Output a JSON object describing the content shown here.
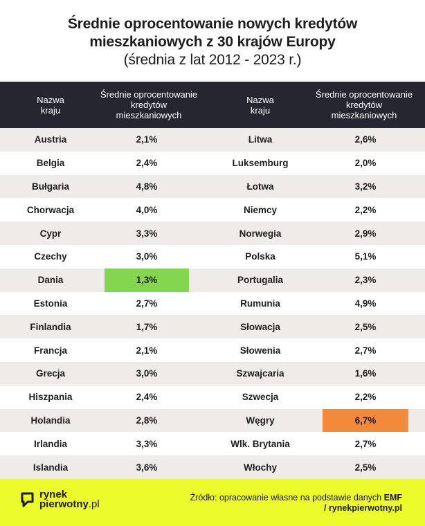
{
  "title": {
    "line1": "Średnie oprocentowanie nowych kredytów",
    "line2": "mieszkaniowych z 30 krajów Europy",
    "line3": "(średnia z lat 2012 - 2023 r.)"
  },
  "headers": {
    "country": "Nazwa\nkraju",
    "rate": "Średnie oprocentowanie\nkredytów\nmieszkaniowych"
  },
  "chart_data": {
    "type": "table",
    "columns": [
      "Nazwa kraju",
      "Średnie oprocentowanie kredytów mieszkaniowych"
    ],
    "left": [
      {
        "country": "Austria",
        "rate": "2,1%",
        "value": 2.1
      },
      {
        "country": "Belgia",
        "rate": "2,4%",
        "value": 2.4
      },
      {
        "country": "Bułgaria",
        "rate": "4,8%",
        "value": 4.8
      },
      {
        "country": "Chorwacja",
        "rate": "4,0%",
        "value": 4.0
      },
      {
        "country": "Cypr",
        "rate": "3,3%",
        "value": 3.3
      },
      {
        "country": "Czechy",
        "rate": "3,0%",
        "value": 3.0
      },
      {
        "country": "Dania",
        "rate": "1,3%",
        "value": 1.3,
        "highlight": "min"
      },
      {
        "country": "Estonia",
        "rate": "2,7%",
        "value": 2.7
      },
      {
        "country": "Finlandia",
        "rate": "1,7%",
        "value": 1.7
      },
      {
        "country": "Francja",
        "rate": "2,1%",
        "value": 2.1
      },
      {
        "country": "Grecja",
        "rate": "3,0%",
        "value": 3.0
      },
      {
        "country": "Hiszpania",
        "rate": "2,4%",
        "value": 2.4
      },
      {
        "country": "Holandia",
        "rate": "2,8%",
        "value": 2.8
      },
      {
        "country": "Irlandia",
        "rate": "3,3%",
        "value": 3.3
      },
      {
        "country": "Islandia",
        "rate": "3,6%",
        "value": 3.6
      }
    ],
    "right": [
      {
        "country": "Litwa",
        "rate": "2,6%",
        "value": 2.6
      },
      {
        "country": "Luksemburg",
        "rate": "2,0%",
        "value": 2.0
      },
      {
        "country": "Łotwa",
        "rate": "3,2%",
        "value": 3.2
      },
      {
        "country": "Niemcy",
        "rate": "2,2%",
        "value": 2.2
      },
      {
        "country": "Norwegia",
        "rate": "2,9%",
        "value": 2.9
      },
      {
        "country": "Polska",
        "rate": "5,1%",
        "value": 5.1
      },
      {
        "country": "Portugalia",
        "rate": "2,3%",
        "value": 2.3
      },
      {
        "country": "Rumunia",
        "rate": "4,9%",
        "value": 4.9
      },
      {
        "country": "Słowacja",
        "rate": "2,5%",
        "value": 2.5
      },
      {
        "country": "Słowenia",
        "rate": "2,7%",
        "value": 2.7
      },
      {
        "country": "Szwajcaria",
        "rate": "1,6%",
        "value": 1.6
      },
      {
        "country": "Szwecja",
        "rate": "2,2%",
        "value": 2.2
      },
      {
        "country": "Węgry",
        "rate": "6,7%",
        "value": 6.7,
        "highlight": "max"
      },
      {
        "country": "Wlk. Brytania",
        "rate": "2,7%",
        "value": 2.7
      },
      {
        "country": "Włochy",
        "rate": "2,5%",
        "value": 2.5
      }
    ]
  },
  "colors": {
    "header_bg": "#25262f",
    "stripe": "#efebe9",
    "min_highlight": "#84d64e",
    "max_highlight": "#f38a3b",
    "footer_bg": "#ebfb2c"
  },
  "footer": {
    "logo_line1": "rynek",
    "logo_line2_bold": "pierwotny",
    "logo_line2_rest": ".pl",
    "source_text": "Źródło: opracowanie własne na podstawie danych ",
    "source_bold": "EMF",
    "site": "/ rynekpierwotny.pl"
  }
}
